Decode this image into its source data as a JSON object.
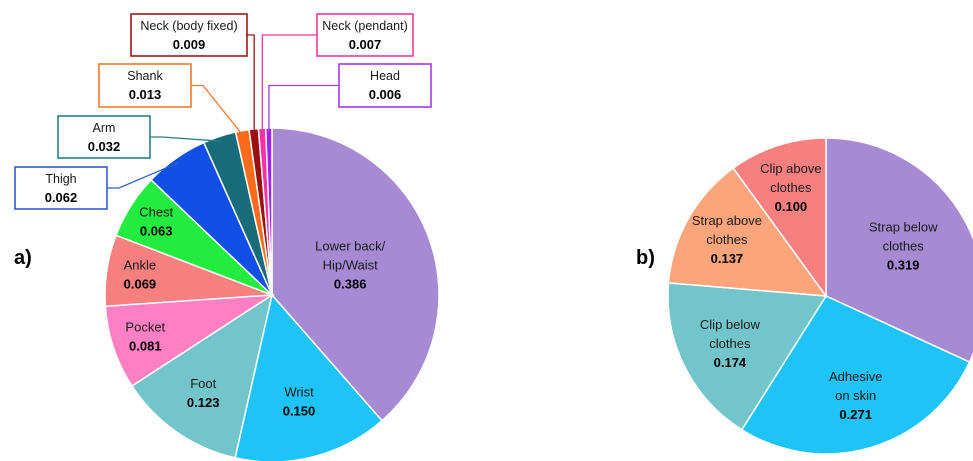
{
  "panels": {
    "a": {
      "label": "a)"
    },
    "b": {
      "label": "b)"
    }
  },
  "chart_data": [
    {
      "type": "pie",
      "panel": "a)",
      "title": "",
      "slices": [
        {
          "label": [
            "Lower back/",
            "Hip/Waist"
          ],
          "value": 0.386,
          "value_text": "0.386",
          "color": "#A68AD4",
          "callout": false
        },
        {
          "label": [
            "Wrist"
          ],
          "value": 0.15,
          "value_text": "0.150",
          "color": "#1EC3F7",
          "callout": false
        },
        {
          "label": [
            "Foot"
          ],
          "value": 0.123,
          "value_text": "0.123",
          "color": "#73C5CC",
          "callout": false
        },
        {
          "label": [
            "Pocket"
          ],
          "value": 0.081,
          "value_text": "0.081",
          "color": "#FF7FC4",
          "callout": false
        },
        {
          "label": [
            "Ankle"
          ],
          "value": 0.069,
          "value_text": "0.069",
          "color": "#F87F7F",
          "callout": false
        },
        {
          "label": [
            "Chest"
          ],
          "value": 0.063,
          "value_text": "0.063",
          "color": "#22EC3F",
          "callout": false
        },
        {
          "label": [
            "Thigh"
          ],
          "value": 0.062,
          "value_text": "0.062",
          "color": "#1050E6",
          "callout": true,
          "box_color": "#2F5FC9"
        },
        {
          "label": [
            "Arm"
          ],
          "value": 0.032,
          "value_text": "0.032",
          "color": "#186B78",
          "callout": true,
          "box_color": "#2A7F88"
        },
        {
          "label": [
            "Shank"
          ],
          "value": 0.013,
          "value_text": "0.013",
          "color": "#FF6A1A",
          "callout": true,
          "box_color": "#F07A2C"
        },
        {
          "label": [
            "Neck (body fixed)"
          ],
          "value": 0.009,
          "value_text": "0.009",
          "color": "#9A0F0F",
          "callout": true,
          "box_color": "#9A1B1B"
        },
        {
          "label": [
            "Neck (pendant)"
          ],
          "value": 0.007,
          "value_text": "0.007",
          "color": "#FF2FA8",
          "callout": true,
          "box_color": "#F0389E"
        },
        {
          "label": [
            "Head"
          ],
          "value": 0.006,
          "value_text": "0.006",
          "color": "#A020F0",
          "callout": true,
          "box_color": "#A23BE8"
        }
      ]
    },
    {
      "type": "pie",
      "panel": "b)",
      "title": "",
      "slices": [
        {
          "label": [
            "Strap below",
            "clothes"
          ],
          "value": 0.319,
          "value_text": "0.319",
          "color": "#A68AD4"
        },
        {
          "label": [
            "Adhesive",
            "on skin"
          ],
          "value": 0.271,
          "value_text": "0.271",
          "color": "#1EC3F7"
        },
        {
          "label": [
            "Clip below",
            "clothes"
          ],
          "value": 0.174,
          "value_text": "0.174",
          "color": "#73C5CC"
        },
        {
          "label": [
            "Strap above",
            "clothes"
          ],
          "value": 0.137,
          "value_text": "0.137",
          "color": "#FCA57A"
        },
        {
          "label": [
            "Clip above",
            "clothes"
          ],
          "value": 0.1,
          "value_text": "0.100",
          "color": "#F87F7F"
        }
      ]
    }
  ]
}
